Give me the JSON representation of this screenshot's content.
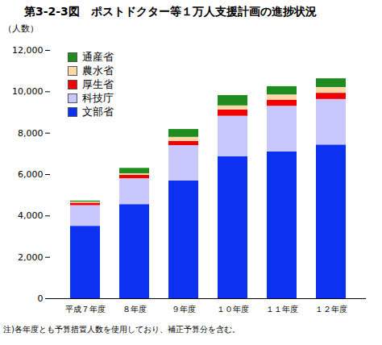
{
  "chart_data": {
    "type": "bar",
    "stacked": true,
    "title": "第3-2-3図　ポストドクター等１万人支援計画の進捗状況",
    "y_label": "（人数）",
    "note": "注)各年度とも予算措置人数を使用しており、補正予算分を含む。",
    "categories": [
      "平成７年度",
      "８年度",
      "９年度",
      "１０年度",
      "１１年度",
      "１２年度"
    ],
    "series": [
      {
        "name": "文部省",
        "color": "#0a32f0",
        "values": [
          3500,
          4550,
          5700,
          6870,
          7100,
          7430
        ]
      },
      {
        "name": "科技庁",
        "color": "#c8c8ff",
        "values": [
          1000,
          1250,
          1700,
          1950,
          2200,
          2200
        ]
      },
      {
        "name": "厚生省",
        "color": "#f00000",
        "values": [
          120,
          170,
          200,
          300,
          300,
          300
        ]
      },
      {
        "name": "農水省",
        "color": "#ffd8a8",
        "values": [
          50,
          70,
          200,
          200,
          250,
          280
        ]
      },
      {
        "name": "通産省",
        "color": "#1e8c1e",
        "values": [
          50,
          260,
          380,
          500,
          400,
          420
        ]
      }
    ],
    "ylim": [
      0,
      12000
    ],
    "yticks": [
      0,
      {
        "value": 2000,
        "label": "2,000"
      },
      {
        "value": 4000,
        "label": "4,000"
      },
      {
        "value": 6000,
        "label": "6,000"
      },
      {
        "value": 8000,
        "label": "8,000"
      },
      {
        "value": 10000,
        "label": "10,000"
      },
      {
        "value": 12000,
        "label": "12,000"
      }
    ],
    "legend": "top-left",
    "grid": false
  }
}
